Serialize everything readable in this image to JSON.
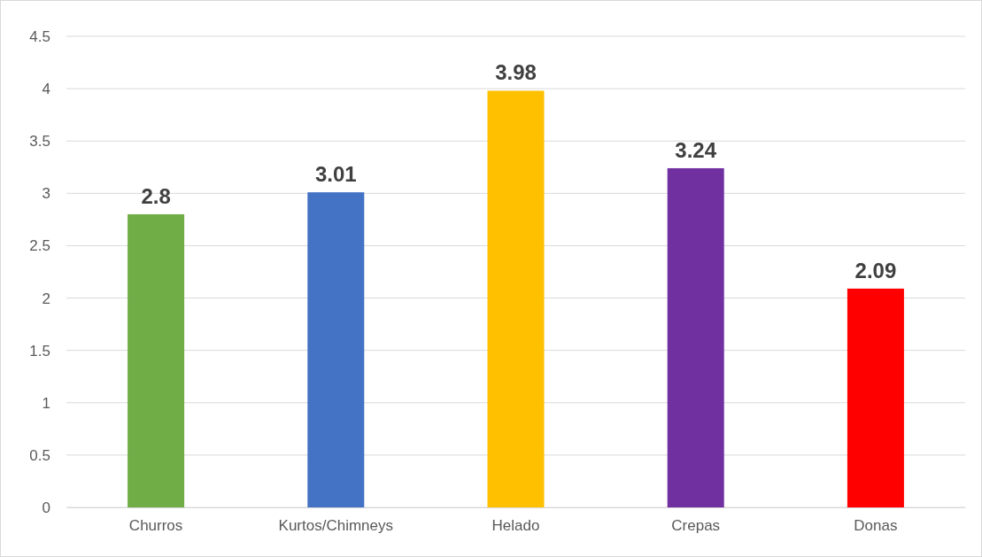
{
  "chart_data": {
    "type": "bar",
    "categories": [
      "Churros",
      "Kurtos/Chimneys",
      "Helado",
      "Crepas",
      "Donas"
    ],
    "values": [
      2.8,
      3.01,
      3.98,
      3.24,
      2.09
    ],
    "colors": [
      "#70ad47",
      "#4472c4",
      "#ffc000",
      "#7030a0",
      "#ff0000"
    ],
    "ylim": [
      0,
      4.5
    ],
    "yticks": [
      0,
      0.5,
      1,
      1.5,
      2,
      2.5,
      3,
      3.5,
      4,
      4.5
    ],
    "grid": "y",
    "data_labels": true
  }
}
